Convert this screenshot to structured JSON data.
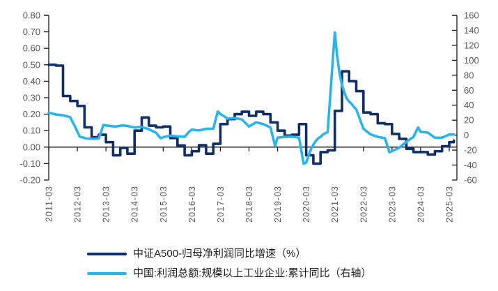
{
  "chart_data": {
    "type": "line",
    "title": "",
    "xlabel": "",
    "ylabel_left": "",
    "ylabel_right": "",
    "grid": false,
    "legend_position": "bottom-left",
    "x_axis": {
      "labels": [
        "2011-03",
        "2012-03",
        "2013-03",
        "2014-03",
        "2015-03",
        "2016-03",
        "2017-03",
        "2018-03",
        "2019-03",
        "2020-03",
        "2021-03",
        "2022-03",
        "2023-03",
        "2024-03",
        "2025-03"
      ],
      "start_t": 2011.17,
      "end_t": 2025.44
    },
    "left_axis": {
      "max": 0.8,
      "min": -0.2,
      "tick_step": 0.1,
      "tick_labels": [
        "0.80",
        "0.70",
        "0.60",
        "0.50",
        "0.40",
        "0.30",
        "0.20",
        "0.10",
        "0.00",
        "-0.10",
        "-0.20"
      ]
    },
    "right_axis": {
      "max": 160,
      "min": -60,
      "tick_step": 20,
      "tick_labels": [
        "160",
        "140",
        "120",
        "100",
        "80",
        "60",
        "40",
        "20",
        "0",
        "-20",
        "-40",
        "-60"
      ]
    },
    "series": [
      {
        "name": "中证A500-归母净利润同比增速（%）",
        "axis": "left",
        "color": "#112e66",
        "line_style": "step",
        "points": [
          [
            2011.17,
            0.5
          ],
          [
            2011.42,
            0.495
          ],
          [
            2011.67,
            0.31
          ],
          [
            2011.92,
            0.28
          ],
          [
            2012.17,
            0.25
          ],
          [
            2012.42,
            0.12
          ],
          [
            2012.67,
            0.06
          ],
          [
            2012.92,
            0.075
          ],
          [
            2013.17,
            0.03
          ],
          [
            2013.42,
            -0.05
          ],
          [
            2013.67,
            -0.005
          ],
          [
            2013.92,
            -0.04
          ],
          [
            2014.17,
            0.1
          ],
          [
            2014.42,
            0.18
          ],
          [
            2014.67,
            0.13
          ],
          [
            2014.92,
            0.12
          ],
          [
            2015.17,
            0.125
          ],
          [
            2015.42,
            0.055
          ],
          [
            2015.67,
            0.01
          ],
          [
            2015.92,
            -0.05
          ],
          [
            2016.17,
            -0.025
          ],
          [
            2016.42,
            0.012
          ],
          [
            2016.67,
            -0.04
          ],
          [
            2016.92,
            0.02
          ],
          [
            2017.17,
            0.14
          ],
          [
            2017.42,
            0.17
          ],
          [
            2017.67,
            0.2
          ],
          [
            2017.92,
            0.215
          ],
          [
            2018.17,
            0.19
          ],
          [
            2018.42,
            0.215
          ],
          [
            2018.67,
            0.2
          ],
          [
            2018.92,
            0.15
          ],
          [
            2019.17,
            0.1
          ],
          [
            2019.42,
            0.07
          ],
          [
            2019.67,
            0.075
          ],
          [
            2019.92,
            0.14
          ],
          [
            2020.17,
            -0.05
          ],
          [
            2020.42,
            -0.1
          ],
          [
            2020.67,
            -0.03
          ],
          [
            2020.92,
            -0.02
          ],
          [
            2021.17,
            0.22
          ],
          [
            2021.42,
            0.46
          ],
          [
            2021.67,
            0.4
          ],
          [
            2021.92,
            0.34
          ],
          [
            2022.17,
            0.21
          ],
          [
            2022.42,
            0.2
          ],
          [
            2022.67,
            0.145
          ],
          [
            2022.92,
            0.14
          ],
          [
            2023.17,
            0.08
          ],
          [
            2023.42,
            0.05
          ],
          [
            2023.67,
            -0.01
          ],
          [
            2023.92,
            -0.03
          ],
          [
            2024.17,
            -0.03
          ],
          [
            2024.42,
            -0.045
          ],
          [
            2024.67,
            -0.025
          ],
          [
            2024.92,
            0.005
          ],
          [
            2025.17,
            0.03
          ],
          [
            2025.33,
            0.04
          ]
        ]
      },
      {
        "name": "中国:利润总额:规模以上工业企业:累计同比（右轴）",
        "axis": "right",
        "color": "#29b4ea",
        "line_style": "linear",
        "points": [
          [
            2011.17,
            30
          ],
          [
            2011.42,
            27.5
          ],
          [
            2011.67,
            26.5
          ],
          [
            2011.92,
            24
          ],
          [
            2012.08,
            12
          ],
          [
            2012.25,
            -2
          ],
          [
            2012.5,
            -4.5
          ],
          [
            2012.75,
            -5
          ],
          [
            2012.92,
            -4.5
          ],
          [
            2013.08,
            13.5
          ],
          [
            2013.25,
            12.5
          ],
          [
            2013.5,
            11.5
          ],
          [
            2013.75,
            13
          ],
          [
            2013.92,
            12.2
          ],
          [
            2014.17,
            10.1
          ],
          [
            2014.42,
            11
          ],
          [
            2014.67,
            7.9
          ],
          [
            2014.92,
            3.3
          ],
          [
            2015.08,
            -4.2
          ],
          [
            2015.17,
            -2.7
          ],
          [
            2015.42,
            -0.7
          ],
          [
            2015.67,
            -1.7
          ],
          [
            2015.92,
            -2.3
          ],
          [
            2016.08,
            4.8
          ],
          [
            2016.17,
            7.4
          ],
          [
            2016.42,
            6.2
          ],
          [
            2016.67,
            8.4
          ],
          [
            2016.92,
            8.5
          ],
          [
            2017.08,
            31.5
          ],
          [
            2017.17,
            28.3
          ],
          [
            2017.42,
            22
          ],
          [
            2017.67,
            22.8
          ],
          [
            2017.92,
            21
          ],
          [
            2018.17,
            11.6
          ],
          [
            2018.42,
            17.2
          ],
          [
            2018.67,
            14.7
          ],
          [
            2018.92,
            10.3
          ],
          [
            2019.08,
            -14
          ],
          [
            2019.17,
            -3.3
          ],
          [
            2019.42,
            -2.4
          ],
          [
            2019.67,
            -2.1
          ],
          [
            2019.92,
            -3.3
          ],
          [
            2020.08,
            -38.3
          ],
          [
            2020.17,
            -36.7
          ],
          [
            2020.25,
            -27.4
          ],
          [
            2020.33,
            -19.3
          ],
          [
            2020.42,
            -12.8
          ],
          [
            2020.5,
            -8.1
          ],
          [
            2020.58,
            -4.4
          ],
          [
            2020.67,
            -2.4
          ],
          [
            2020.75,
            0.7
          ],
          [
            2020.83,
            2.4
          ],
          [
            2020.92,
            4.1
          ],
          [
            2021.17,
            137.3
          ],
          [
            2021.25,
            106.1
          ],
          [
            2021.33,
            83.4
          ],
          [
            2021.42,
            66.9
          ],
          [
            2021.5,
            57.3
          ],
          [
            2021.58,
            49.5
          ],
          [
            2021.67,
            44.7
          ],
          [
            2021.75,
            42.2
          ],
          [
            2021.83,
            38
          ],
          [
            2021.92,
            34.3
          ],
          [
            2022.17,
            8.5
          ],
          [
            2022.42,
            1
          ],
          [
            2022.67,
            -2.3
          ],
          [
            2022.92,
            -4
          ],
          [
            2023.08,
            -22.9
          ],
          [
            2023.17,
            -21.4
          ],
          [
            2023.42,
            -16.8
          ],
          [
            2023.67,
            -9
          ],
          [
            2023.92,
            -2.3
          ],
          [
            2024.08,
            10.2
          ],
          [
            2024.17,
            4.3
          ],
          [
            2024.42,
            3.5
          ],
          [
            2024.67,
            -3.5
          ],
          [
            2024.92,
            -3.3
          ],
          [
            2025.17,
            0.8
          ],
          [
            2025.33,
            1
          ]
        ]
      }
    ]
  },
  "legend": {
    "items": [
      {
        "label": "中证A500-归母净利润同比增速（%）"
      },
      {
        "label": "中国:利润总额:规模以上工业企业:累计同比（右轴）"
      }
    ]
  }
}
